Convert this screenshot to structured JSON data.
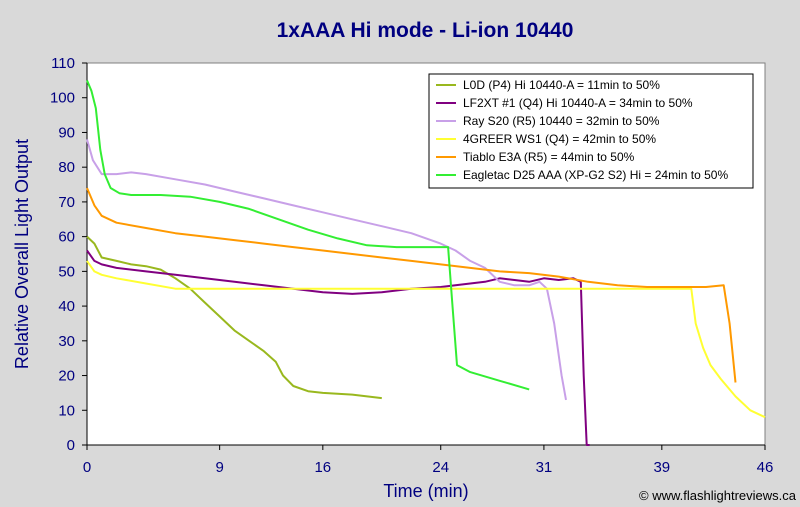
{
  "chart_data": {
    "type": "line",
    "title": "1xAAA Hi mode - Li-ion 10440",
    "xlabel": "Time (min)",
    "ylabel": "Relative Overall Light Output",
    "xlim": [
      0,
      46
    ],
    "ylim": [
      0,
      110
    ],
    "x_ticks": [
      0,
      9,
      16,
      24,
      31,
      39,
      46
    ],
    "y_ticks": [
      0,
      10,
      20,
      30,
      40,
      50,
      60,
      70,
      80,
      90,
      100,
      110
    ],
    "grid": false,
    "legend_position": "top-right",
    "credit": "© www.flashlightreviews.ca",
    "colors": {
      "plot_background": "#ffffff",
      "page_background": "#d9d9d9",
      "text": "#000080"
    },
    "series": [
      {
        "name": "L0D (P4) Hi 10440-A = 11min to 50%",
        "color": "#99b81e",
        "points": [
          [
            0,
            60
          ],
          [
            0.5,
            58
          ],
          [
            1,
            54
          ],
          [
            2,
            53
          ],
          [
            3,
            52
          ],
          [
            4,
            51.5
          ],
          [
            5,
            50.5
          ],
          [
            6,
            48
          ],
          [
            7,
            45
          ],
          [
            8,
            41
          ],
          [
            9,
            37
          ],
          [
            10,
            33
          ],
          [
            11,
            30
          ],
          [
            12,
            27
          ],
          [
            12.8,
            24
          ],
          [
            13.3,
            20
          ],
          [
            14,
            17
          ],
          [
            15,
            15.5
          ],
          [
            16,
            15
          ],
          [
            18,
            14.5
          ],
          [
            20,
            13.5
          ]
        ]
      },
      {
        "name": "LF2XT #1 (Q4) Hi 10440-A = 34min to 50%",
        "color": "#800080",
        "points": [
          [
            0,
            56
          ],
          [
            0.5,
            53
          ],
          [
            1,
            52
          ],
          [
            2,
            51
          ],
          [
            4,
            50
          ],
          [
            6,
            49
          ],
          [
            8,
            48
          ],
          [
            10,
            47
          ],
          [
            12,
            46
          ],
          [
            14,
            45
          ],
          [
            16,
            44
          ],
          [
            18,
            43.5
          ],
          [
            20,
            44
          ],
          [
            22,
            45
          ],
          [
            24,
            45.5
          ],
          [
            25,
            46
          ],
          [
            26,
            46.5
          ],
          [
            27,
            47
          ],
          [
            28,
            48
          ],
          [
            29,
            47.5
          ],
          [
            30,
            47
          ],
          [
            31,
            48
          ],
          [
            32,
            47.5
          ],
          [
            33,
            48
          ],
          [
            33.5,
            47
          ],
          [
            33.7,
            20
          ],
          [
            33.9,
            0
          ],
          [
            34.1,
            0
          ]
        ]
      },
      {
        "name": "Ray S20 (R5) 10440 = 32min to 50%",
        "color": "#c8a0e8",
        "points": [
          [
            0,
            88
          ],
          [
            0.4,
            82
          ],
          [
            1,
            78
          ],
          [
            2,
            78
          ],
          [
            3,
            78.5
          ],
          [
            4,
            78
          ],
          [
            6,
            76.5
          ],
          [
            8,
            75
          ],
          [
            10,
            73
          ],
          [
            12,
            71
          ],
          [
            14,
            69
          ],
          [
            16,
            67
          ],
          [
            18,
            65
          ],
          [
            20,
            63
          ],
          [
            22,
            61
          ],
          [
            24,
            58
          ],
          [
            25,
            56
          ],
          [
            26,
            53
          ],
          [
            27,
            51
          ],
          [
            28,
            47
          ],
          [
            29,
            46
          ],
          [
            30,
            46
          ],
          [
            30.7,
            47
          ],
          [
            31.2,
            45
          ],
          [
            31.7,
            35
          ],
          [
            32.2,
            20
          ],
          [
            32.5,
            13
          ]
        ]
      },
      {
        "name": "4GREER WS1 (Q4) = 42min to 50%",
        "color": "#ffff33",
        "points": [
          [
            0,
            53
          ],
          [
            0.5,
            50
          ],
          [
            1,
            49
          ],
          [
            2,
            48
          ],
          [
            4,
            46.5
          ],
          [
            6,
            45
          ],
          [
            8,
            45
          ],
          [
            10,
            45
          ],
          [
            14,
            45
          ],
          [
            18,
            45
          ],
          [
            22,
            45
          ],
          [
            26,
            45
          ],
          [
            30,
            45
          ],
          [
            34,
            45
          ],
          [
            38,
            45
          ],
          [
            40,
            45
          ],
          [
            41,
            45
          ],
          [
            41.3,
            35
          ],
          [
            41.8,
            28
          ],
          [
            42.3,
            23
          ],
          [
            43,
            19
          ],
          [
            44,
            14
          ],
          [
            45,
            10
          ],
          [
            46,
            8
          ]
        ]
      },
      {
        "name": "Tiablo E3A (R5) = 44min to 50%",
        "color": "#ff9900",
        "points": [
          [
            0,
            74
          ],
          [
            0.5,
            69
          ],
          [
            1,
            66
          ],
          [
            2,
            64
          ],
          [
            4,
            62.5
          ],
          [
            6,
            61
          ],
          [
            8,
            60
          ],
          [
            10,
            59
          ],
          [
            12,
            58
          ],
          [
            14,
            57
          ],
          [
            16,
            56
          ],
          [
            18,
            55
          ],
          [
            20,
            54
          ],
          [
            22,
            53
          ],
          [
            24,
            52
          ],
          [
            26,
            51
          ],
          [
            28,
            50
          ],
          [
            30,
            49.5
          ],
          [
            32,
            48.5
          ],
          [
            34,
            47
          ],
          [
            36,
            46
          ],
          [
            38,
            45.5
          ],
          [
            40,
            45.5
          ],
          [
            42,
            45.5
          ],
          [
            43.2,
            46
          ],
          [
            43.6,
            35
          ],
          [
            44.0,
            18
          ]
        ]
      },
      {
        "name": "Eagletac D25 AAA (XP-G2 S2) Hi = 24min to 50%",
        "color": "#33ee33",
        "points": [
          [
            0,
            105
          ],
          [
            0.3,
            102
          ],
          [
            0.6,
            97
          ],
          [
            0.9,
            85
          ],
          [
            1.2,
            78
          ],
          [
            1.6,
            74
          ],
          [
            2.2,
            72.5
          ],
          [
            3,
            72
          ],
          [
            5,
            72
          ],
          [
            7,
            71.5
          ],
          [
            9,
            70
          ],
          [
            11,
            68
          ],
          [
            13,
            65
          ],
          [
            15,
            62
          ],
          [
            17,
            59.5
          ],
          [
            19,
            57.5
          ],
          [
            21,
            57
          ],
          [
            23,
            57
          ],
          [
            24.5,
            57
          ],
          [
            24.8,
            40
          ],
          [
            25.1,
            23
          ],
          [
            26,
            21
          ],
          [
            28,
            18.5
          ],
          [
            30,
            16
          ]
        ]
      }
    ]
  }
}
